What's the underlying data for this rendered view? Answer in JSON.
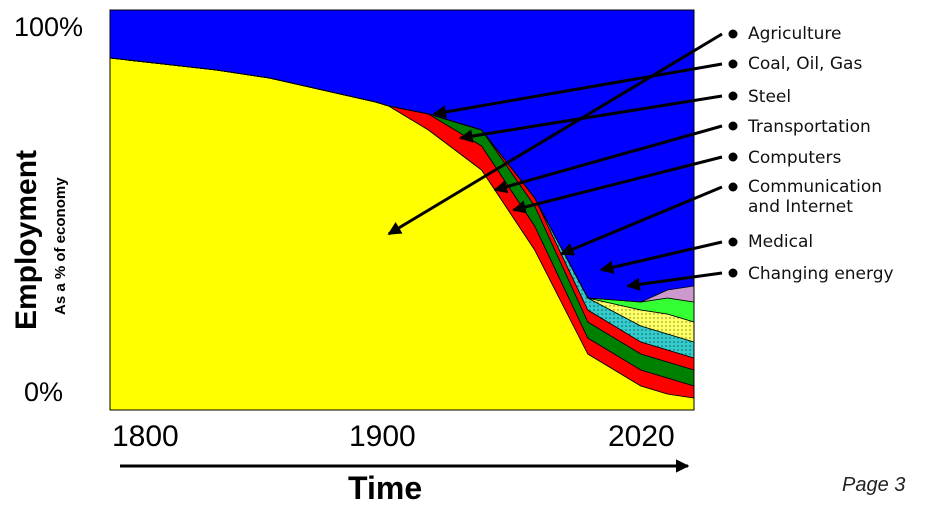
{
  "chart_data": {
    "type": "area",
    "x": [
      1800,
      1820,
      1840,
      1860,
      1880,
      1900,
      1905,
      1920,
      1940,
      1960,
      1980,
      2000,
      2010,
      2020
    ],
    "xlim": [
      1800,
      2020
    ],
    "ylim": [
      0,
      100
    ],
    "series": [
      {
        "name": "Agriculture",
        "color": "#ffff00",
        "values": [
          88,
          86.5,
          85,
          83,
          80,
          77,
          76,
          70,
          60,
          40,
          14,
          6,
          4,
          3
        ]
      },
      {
        "name": "Coal, Oil, Gas",
        "color": "#ff0000",
        "values": [
          0,
          0,
          0,
          0,
          0,
          0,
          0,
          4,
          6,
          6,
          4,
          4,
          4,
          3
        ]
      },
      {
        "name": "Steel",
        "color": "#008000",
        "values": [
          0,
          0,
          0,
          0,
          0,
          0,
          0,
          0,
          4,
          5,
          4,
          4,
          4,
          4
        ]
      },
      {
        "name": "Transportation",
        "color": "#ff0000",
        "values": [
          0,
          0,
          0,
          0,
          0,
          0,
          0,
          0,
          0,
          2,
          3,
          3,
          3,
          3
        ]
      },
      {
        "name": "Computers",
        "color": "#33cccc",
        "values": [
          0,
          0,
          0,
          0,
          0,
          0,
          0,
          0,
          0,
          0,
          3,
          4,
          4,
          4
        ]
      },
      {
        "name": "Communication and Internet",
        "color": "#ffff66",
        "values": [
          0,
          0,
          0,
          0,
          0,
          0,
          0,
          0,
          0,
          0,
          0,
          4,
          5,
          5
        ]
      },
      {
        "name": "Medical",
        "color": "#33ff33",
        "values": [
          0,
          0,
          0,
          0,
          0,
          0,
          0,
          0,
          0,
          0,
          0,
          2,
          4,
          5
        ]
      },
      {
        "name": "Changing energy",
        "color": "#cc99cc",
        "values": [
          0,
          0,
          0,
          0,
          0,
          0,
          0,
          0,
          0,
          0,
          0,
          0,
          2,
          4
        ]
      }
    ],
    "background_color": "#0000ff",
    "ytick_labels": [
      "100%",
      "0%"
    ],
    "xtick_labels": [
      "1800",
      "1900",
      "2020"
    ],
    "ylabel": "Employment",
    "ylabel_sub": "As a % of economy",
    "xlabel": "Time",
    "legend_placement": "right"
  },
  "page_label": "Page 3"
}
